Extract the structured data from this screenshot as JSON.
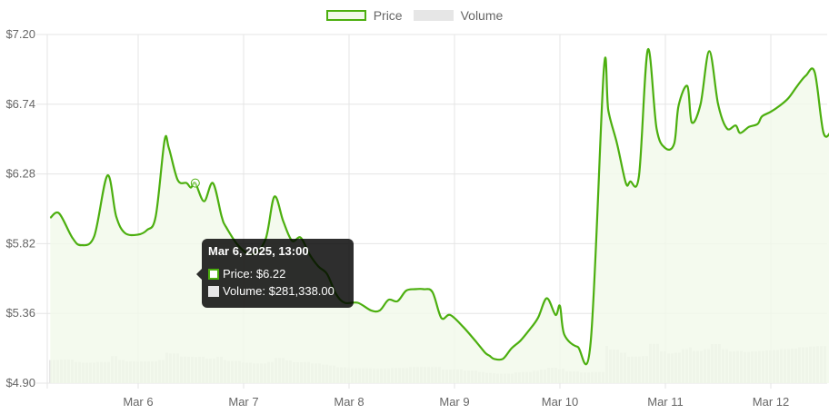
{
  "legend": {
    "price_label": "Price",
    "volume_label": "Volume"
  },
  "colors": {
    "price_line": "#4caf0f",
    "price_fill": "#f1f9ea",
    "volume_bar": "#e6e6e6",
    "grid": "#e5e5e5"
  },
  "tooltip": {
    "title": "Mar 6, 2025, 13:00",
    "price_text": "Price: $6.22",
    "volume_text": "Volume: $281,338.00"
  },
  "chart_data": {
    "type": "line",
    "title": "",
    "xlabel": "",
    "ylabel": "",
    "ylim": [
      4.9,
      7.2
    ],
    "yticks": [
      "$7.20",
      "$6.74",
      "$6.28",
      "$5.82",
      "$5.36",
      "$4.90"
    ],
    "xticks": [
      "Mar 6",
      "Mar 7",
      "Mar 8",
      "Mar 9",
      "Mar 10",
      "Mar 11",
      "Mar 12"
    ],
    "grid": true,
    "legend_position": "top",
    "series": [
      {
        "name": "Price",
        "x": [
          "2025-03-05 04:00",
          "2025-03-05 06:00",
          "2025-03-05 09:00",
          "2025-03-05 11:00",
          "2025-03-05 14:00",
          "2025-03-05 17:00",
          "2025-03-05 19:00",
          "2025-03-05 21:00",
          "2025-03-06 00:00",
          "2025-03-06 02:00",
          "2025-03-06 04:00",
          "2025-03-06 06:00",
          "2025-03-06 07:00",
          "2025-03-06 09:00",
          "2025-03-06 11:00",
          "2025-03-06 12:00",
          "2025-03-06 13:00",
          "2025-03-06 15:00",
          "2025-03-06 17:00",
          "2025-03-06 19:00",
          "2025-03-06 20:00",
          "2025-03-06 23:00",
          "2025-03-07 02:00",
          "2025-03-07 05:00",
          "2025-03-07 07:00",
          "2025-03-07 09:00",
          "2025-03-07 11:00",
          "2025-03-07 13:00",
          "2025-03-07 15:00",
          "2025-03-07 17:00",
          "2025-03-07 19:00",
          "2025-03-07 21:00",
          "2025-03-07 23:00",
          "2025-03-08 02:00",
          "2025-03-08 05:00",
          "2025-03-08 07:00",
          "2025-03-08 09:00",
          "2025-03-08 11:00",
          "2025-03-08 13:00",
          "2025-03-08 15:00",
          "2025-03-08 17:00",
          "2025-03-08 19:00",
          "2025-03-08 21:00",
          "2025-03-08 23:00",
          "2025-03-09 02:00",
          "2025-03-09 05:00",
          "2025-03-09 07:00",
          "2025-03-09 08:00",
          "2025-03-09 09:00",
          "2025-03-09 11:00",
          "2025-03-09 13:00",
          "2025-03-09 15:00",
          "2025-03-09 17:00",
          "2025-03-09 19:00",
          "2025-03-09 21:00",
          "2025-03-09 23:00",
          "2025-03-10 00:00",
          "2025-03-10 01:00",
          "2025-03-10 04:00",
          "2025-03-10 07:00",
          "2025-03-10 10:00",
          "2025-03-10 11:00",
          "2025-03-10 13:00",
          "2025-03-10 15:00",
          "2025-03-10 16:00",
          "2025-03-10 18:00",
          "2025-03-10 20:00",
          "2025-03-10 22:00",
          "2025-03-11 00:00",
          "2025-03-11 02:00",
          "2025-03-11 03:00",
          "2025-03-11 05:00",
          "2025-03-11 06:00",
          "2025-03-11 08:00",
          "2025-03-11 10:00",
          "2025-03-11 12:00",
          "2025-03-11 14:00",
          "2025-03-11 16:00",
          "2025-03-11 17:00",
          "2025-03-11 19:00",
          "2025-03-11 21:00",
          "2025-03-11 22:00",
          "2025-03-12 00:00",
          "2025-03-12 02:00",
          "2025-03-12 04:00",
          "2025-03-12 06:00",
          "2025-03-12 08:00",
          "2025-03-12 10:00",
          "2025-03-12 12:00",
          "2025-03-12 14:00",
          "2025-03-12 15:00"
        ],
        "values": [
          5.99,
          6.02,
          5.86,
          5.81,
          5.87,
          6.27,
          6.0,
          5.89,
          5.88,
          5.91,
          6.0,
          6.5,
          6.45,
          6.24,
          6.22,
          6.19,
          6.22,
          6.1,
          6.22,
          6.0,
          5.93,
          5.8,
          5.75,
          5.85,
          6.13,
          5.97,
          5.84,
          5.86,
          5.75,
          5.67,
          5.62,
          5.49,
          5.43,
          5.43,
          5.38,
          5.38,
          5.45,
          5.44,
          5.51,
          5.52,
          5.52,
          5.5,
          5.33,
          5.35,
          5.27,
          5.17,
          5.1,
          5.08,
          5.06,
          5.06,
          5.13,
          5.18,
          5.25,
          5.33,
          5.46,
          5.35,
          5.41,
          5.22,
          5.14,
          5.17,
          6.97,
          6.7,
          6.48,
          6.22,
          6.23,
          6.27,
          7.1,
          6.58,
          6.45,
          6.48,
          6.73,
          6.86,
          6.62,
          6.74,
          7.09,
          6.74,
          6.58,
          6.6,
          6.55,
          6.59,
          6.61,
          6.66,
          6.69,
          6.73,
          6.78,
          6.86,
          6.93,
          6.95,
          6.55,
          6.57,
          6.58
        ]
      },
      {
        "name": "Volume",
        "values": []
      }
    ]
  }
}
